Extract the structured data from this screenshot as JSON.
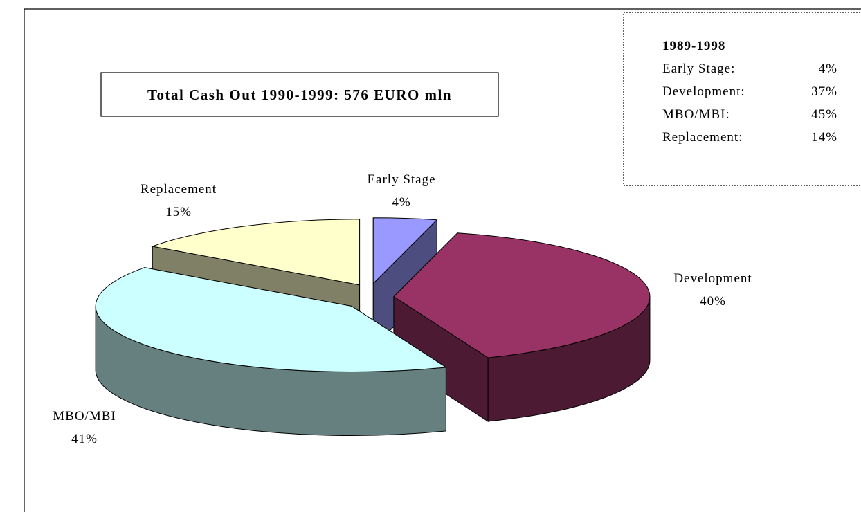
{
  "chart_data": {
    "type": "pie3d",
    "title": "Total Cash Out 1990-1999: 576 EURO mln",
    "categories": [
      "Early Stage",
      "Development",
      "MBO/MBI",
      "Replacement"
    ],
    "values": [
      4,
      40,
      41,
      15
    ],
    "value_labels": [
      "4%",
      "40%",
      "41%",
      "15%"
    ],
    "colors": [
      "#9999ff",
      "#993366",
      "#ccffff",
      "#ffffcc"
    ],
    "exploded": true
  },
  "comparison_box": {
    "title": "1989-1998",
    "rows": [
      [
        "Early Stage:",
        "4%"
      ],
      [
        "Development:",
        "37%"
      ],
      [
        "MBO/MBI:",
        "45%"
      ],
      [
        "Replacement:",
        "14%"
      ]
    ]
  }
}
